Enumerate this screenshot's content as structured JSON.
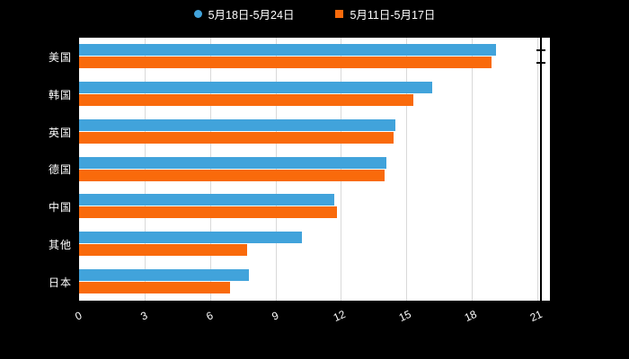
{
  "chart_data": {
    "type": "bar",
    "orientation": "horizontal",
    "title": "",
    "xlabel": "",
    "ylabel": "",
    "categories": [
      "美国",
      "韩国",
      "英国",
      "德国",
      "中国",
      "其他",
      "日本"
    ],
    "series": [
      {
        "name": "5月18日-5月24日",
        "color": "#41A3DB",
        "marker": "circle",
        "values": [
          19.1,
          16.2,
          14.5,
          14.1,
          11.7,
          10.2,
          7.8
        ]
      },
      {
        "name": "5月11日-5月17日",
        "color": "#F96A0B",
        "marker": "square",
        "values": [
          18.9,
          15.3,
          14.4,
          14.0,
          11.8,
          7.7,
          6.9
        ]
      }
    ],
    "xlim": [
      0,
      21
    ],
    "xticks": [
      0,
      3,
      6,
      9,
      12,
      15,
      18,
      21
    ],
    "grid": true,
    "legend_position": "top"
  },
  "colors": {
    "page_background": "#000000",
    "plot_background": "#ffffff",
    "gridline": "#d9d9d9",
    "axis_line": "#000000",
    "label_text": "#ffffff"
  }
}
